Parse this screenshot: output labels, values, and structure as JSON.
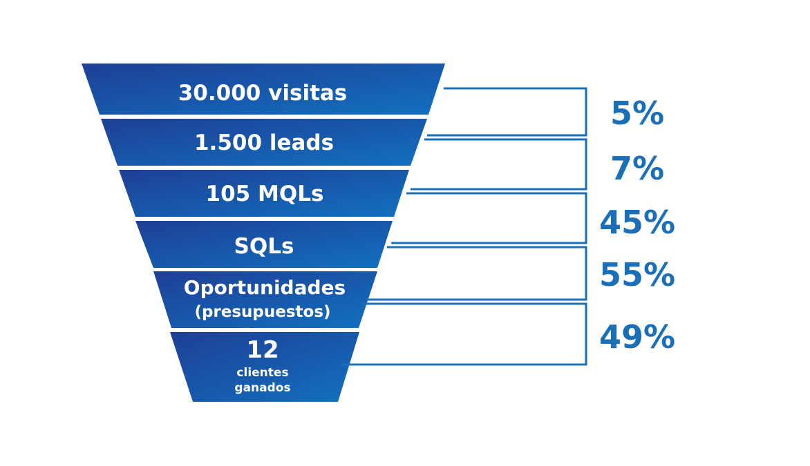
{
  "funnel": {
    "stages": [
      {
        "main": "30.000 visitas",
        "sub": ""
      },
      {
        "main": "1.500 leads",
        "sub": ""
      },
      {
        "main": "105 MQLs",
        "sub": ""
      },
      {
        "main": "SQLs",
        "sub": ""
      },
      {
        "main": "Oportunidades",
        "sub": "(presupuestos)"
      },
      {
        "main": "12",
        "sub": "clientes",
        "sub2": "ganados"
      }
    ],
    "conversion_rates": [
      "5%",
      "7%",
      "45%",
      "55%",
      "49%"
    ],
    "colors": {
      "gradient_start": "#1e3f95",
      "gradient_end": "#1270c0",
      "bracket": "#1a6fb7",
      "rate_text": "#1a6fb7"
    }
  }
}
